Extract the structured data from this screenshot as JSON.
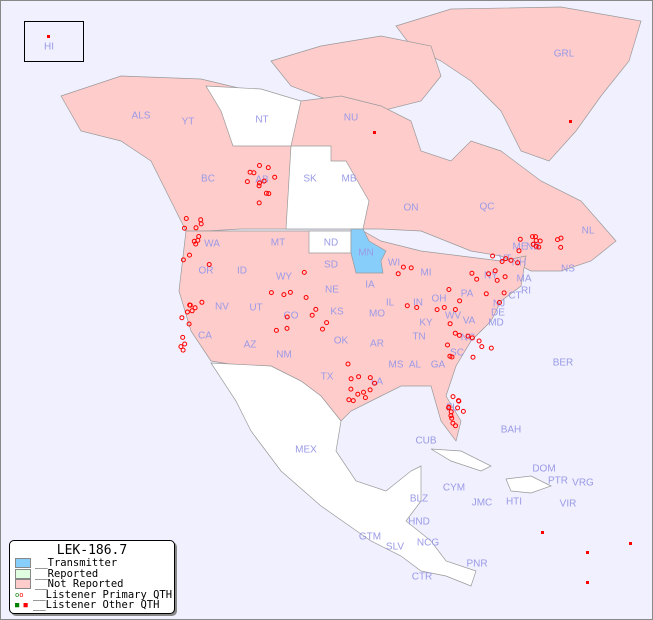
{
  "title": "LEK-186.7",
  "legend": {
    "items": [
      {
        "label": "__Transmitter",
        "color": "#87cefa"
      },
      {
        "label": "__Reported",
        "color": "#e0ffe0"
      },
      {
        "label": "__Not Reported",
        "color": "#ffcccc"
      },
      {
        "label": "__Listener Primary QTH",
        "symbol": "circle"
      },
      {
        "label": "__Listener Other QTH",
        "symbol": "square"
      }
    ]
  },
  "colors": {
    "background": "#f0f0ff",
    "not_reported": "#ffcccc",
    "transmitter": "#87cefa",
    "unreported": "#ffffff",
    "marker": "#ff0000",
    "label": "#9a9ae6"
  },
  "regions": [
    "HI",
    "ALS",
    "YT",
    "NT",
    "NU",
    "GRL",
    "BC",
    "AB",
    "SK",
    "MB",
    "ON",
    "QC",
    "NL",
    "NB",
    "NS",
    "WA",
    "OR",
    "ID",
    "MT",
    "WY",
    "ND",
    "SD",
    "NE",
    "MN",
    "WI",
    "IA",
    "IL",
    "MI",
    "IN",
    "OH",
    "PA",
    "NY",
    "VT",
    "NH",
    "ME",
    "MA",
    "CT",
    "RI",
    "NJ",
    "DE",
    "MD",
    "VA",
    "WV",
    "KY",
    "TN",
    "NC",
    "SC",
    "GA",
    "AL",
    "MS",
    "LA",
    "AR",
    "MO",
    "KS",
    "OK",
    "TX",
    "NM",
    "CO",
    "AZ",
    "UT",
    "NV",
    "CA",
    "FL",
    "MEX",
    "CUB",
    "BAH",
    "BER",
    "CYM",
    "JMC",
    "HTI",
    "DOM",
    "PTR",
    "VRG",
    "VIR",
    "BLZ",
    "GTM",
    "HND",
    "SLV",
    "NCG",
    "CTR",
    "PNR"
  ]
}
